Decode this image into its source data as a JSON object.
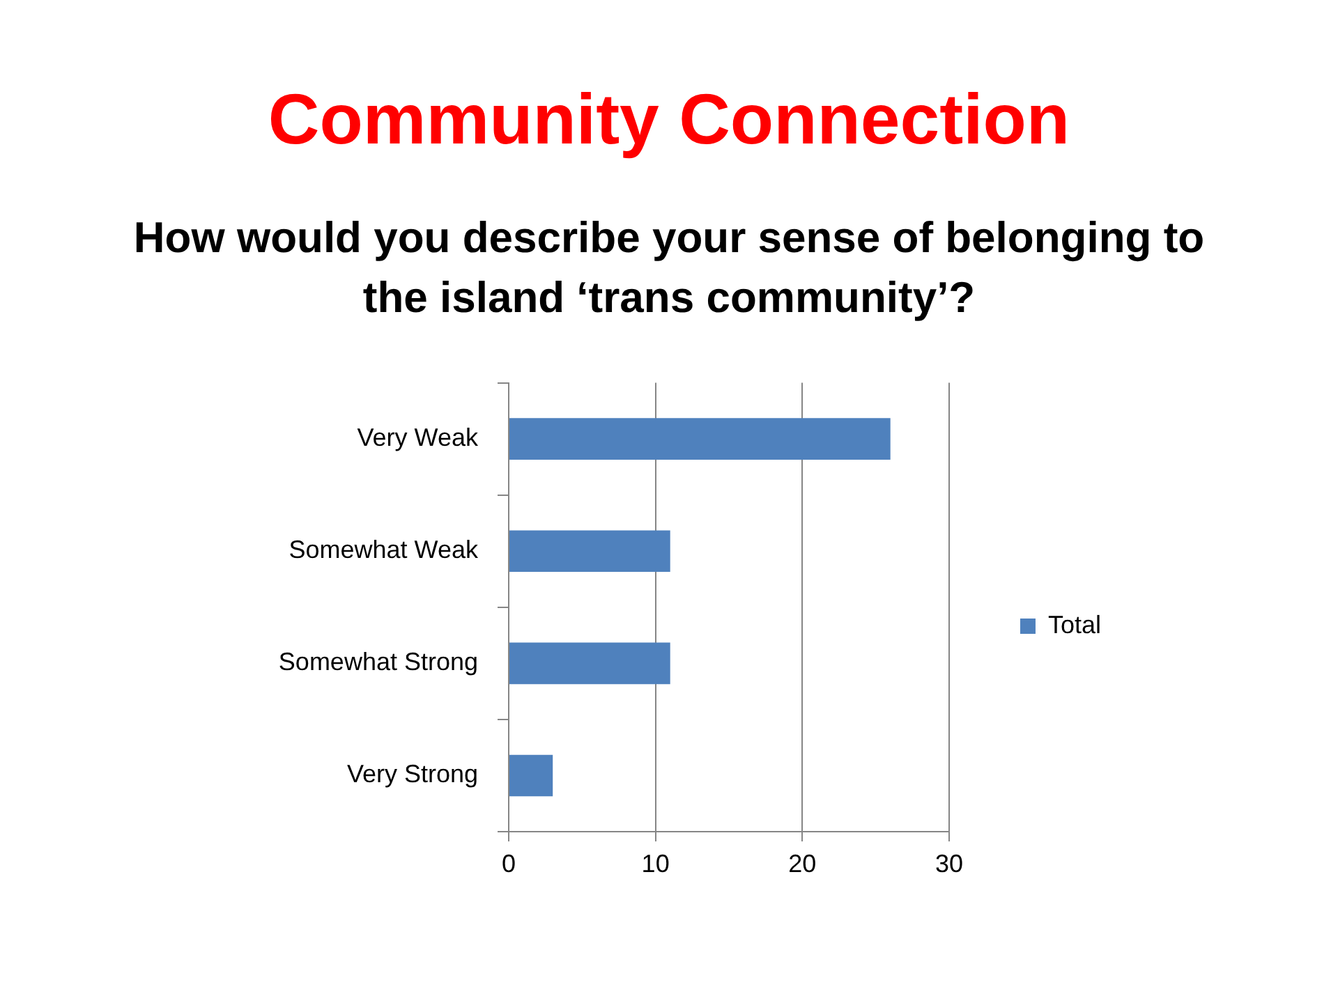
{
  "chart_data": {
    "type": "bar",
    "title": "Community Connection",
    "subtitle": "How would you describe your sense of belonging to the island ‘trans community’?",
    "orientation": "horizontal",
    "categories": [
      "Very Weak",
      "Somewhat Weak",
      "Somewhat Strong",
      "Very Strong"
    ],
    "series": [
      {
        "name": "Total",
        "color": "#4f81bd",
        "values": [
          26,
          11,
          11,
          3
        ]
      }
    ],
    "xlim": [
      0,
      30
    ],
    "xticks": [
      0,
      10,
      20,
      30
    ],
    "grid": "x",
    "legend": "right"
  }
}
